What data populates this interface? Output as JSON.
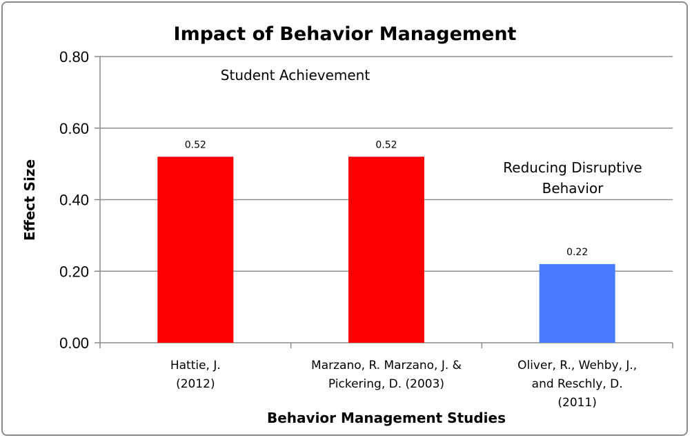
{
  "chart_data": {
    "type": "bar",
    "title": "Impact of Behavior Management",
    "xlabel": "Behavior Management Studies",
    "ylabel": "Effect Size",
    "ylim": [
      0,
      0.8
    ],
    "yticks": [
      "0.00",
      "0.20",
      "0.40",
      "0.60",
      "0.80"
    ],
    "grid": true,
    "categories": [
      [
        "Hattie, J.",
        "(2012)"
      ],
      [
        "Marzano, R. Marzano, J. &",
        "Pickering, D. (2003)"
      ],
      [
        "Oliver, R., Wehby, J.,",
        "and Reschly, D.",
        "(2011)"
      ]
    ],
    "values": [
      0.52,
      0.52,
      0.22
    ],
    "data_labels": [
      "0.52",
      "0.52",
      "0.22"
    ],
    "bar_colors": [
      "#ff0000",
      "#ff0000",
      "#4a7cff"
    ],
    "annotations": [
      [
        "Student Achievement"
      ],
      [
        "Reducing Disruptive",
        "Behavior"
      ]
    ]
  }
}
